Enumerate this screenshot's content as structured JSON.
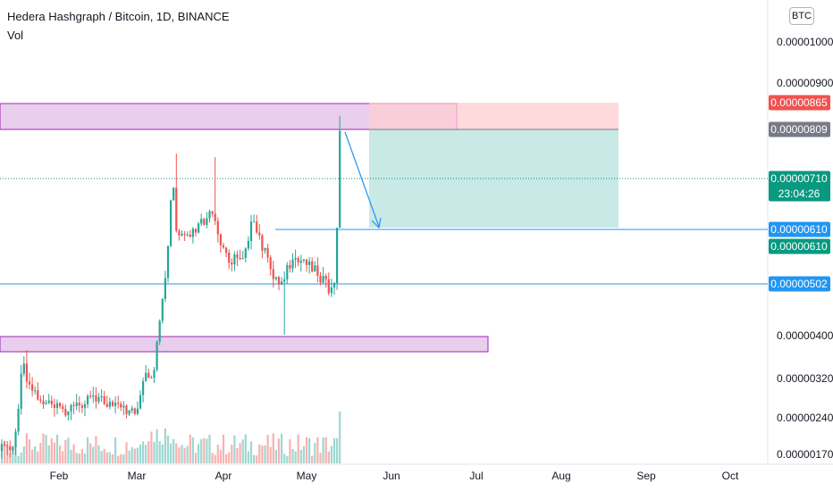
{
  "header": {
    "symbol": "Hedera Hashgraph / Bitcoin, 1D, BINANCE",
    "indicator": "Vol"
  },
  "currency_button": "BTC",
  "colors": {
    "up": "#26a69a",
    "down": "#ef5350",
    "zone_fill": "#e1bee7",
    "zone_border": "#9c27b0",
    "hline": "#2196f3",
    "profit": "#b2dfdb",
    "stop": "#ffcdd2"
  },
  "chart_data": {
    "type": "candlestick",
    "x_axis": {
      "ticks": [
        "Feb",
        "Mar",
        "Apr",
        "May",
        "Jun",
        "Jul",
        "Aug",
        "Sep",
        "Oct"
      ]
    },
    "y_axis": {
      "scale": "log",
      "ticks": [
        "0.00001000",
        "0.00000900",
        "0.00000400",
        "0.00000320",
        "0.00000240",
        "0.00000170"
      ]
    },
    "price_tags": [
      {
        "label": "0.00000865",
        "color": "#ef5350"
      },
      {
        "label": "0.00000809",
        "color": "#787b86"
      },
      {
        "label": "0.00000710",
        "sub": "23:04:26",
        "color": "#089981"
      },
      {
        "label": "0.00000610",
        "color": "#2196f3"
      },
      {
        "label": "0.00000610",
        "color": "#089981"
      },
      {
        "label": "0.00000502",
        "color": "#2196f3"
      }
    ]
  }
}
